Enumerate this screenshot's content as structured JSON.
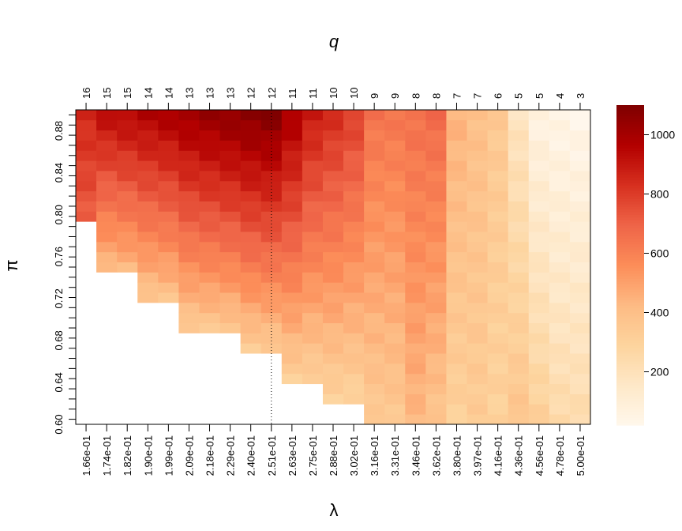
{
  "chart_data": {
    "type": "heatmap",
    "title": "q",
    "xlabel": "λ",
    "ylabel": "π",
    "x_tick_labels": [
      "1.66e-01",
      "1.74e-01",
      "1.82e-01",
      "1.90e-01",
      "1.99e-01",
      "2.09e-01",
      "2.18e-01",
      "2.29e-01",
      "2.40e-01",
      "2.51e-01",
      "2.63e-01",
      "2.75e-01",
      "2.88e-01",
      "3.02e-01",
      "3.16e-01",
      "3.31e-01",
      "3.46e-01",
      "3.62e-01",
      "3.80e-01",
      "3.97e-01",
      "4.16e-01",
      "4.36e-01",
      "4.56e-01",
      "4.78e-01",
      "5.00e-01"
    ],
    "top_tick_labels": [
      "16",
      "15",
      "15",
      "14",
      "14",
      "13",
      "13",
      "13",
      "12",
      "12",
      "11",
      "11",
      "10",
      "10",
      "9",
      "9",
      "8",
      "8",
      "7",
      "7",
      "6",
      "5",
      "5",
      "4",
      "3"
    ],
    "y_tick_labels": [
      "0.60",
      "0.64",
      "0.68",
      "0.72",
      "0.76",
      "0.80",
      "0.84",
      "0.88"
    ],
    "y_ticks": [
      0.6,
      0.64,
      0.68,
      0.72,
      0.76,
      0.8,
      0.84,
      0.88
    ],
    "y_range": [
      0.6,
      0.9
    ],
    "n_columns": 25,
    "n_rows": 31,
    "colorbar_ticks": [
      200,
      400,
      600,
      800,
      1000
    ],
    "color_range": [
      20,
      1100
    ],
    "palette": [
      "#FFF7EC",
      "#FEE8C8",
      "#FDD49E",
      "#FDBB84",
      "#FC8D59",
      "#EF6548",
      "#D7301F",
      "#B30000",
      "#7F0000"
    ],
    "reference_lines": {
      "vertical_x_label": "2.51e-01",
      "horizontal_y": 0.9
    },
    "column_profiles": [
      {
        "start_pi": 0.79,
        "values_bottom": 700,
        "values_top": 860
      },
      {
        "start_pi": 0.75,
        "values_bottom": 420,
        "values_top": 940
      },
      {
        "start_pi": 0.75,
        "values_bottom": 430,
        "values_top": 960
      },
      {
        "start_pi": 0.72,
        "values_bottom": 360,
        "values_top": 980
      },
      {
        "start_pi": 0.72,
        "values_bottom": 370,
        "values_top": 1000
      },
      {
        "start_pi": 0.69,
        "values_bottom": 330,
        "values_top": 1030
      },
      {
        "start_pi": 0.69,
        "values_bottom": 340,
        "values_top": 1050
      },
      {
        "start_pi": 0.69,
        "values_bottom": 350,
        "values_top": 1070
      },
      {
        "start_pi": 0.67,
        "values_bottom": 320,
        "values_top": 1090
      },
      {
        "start_pi": 0.67,
        "values_bottom": 330,
        "values_top": 1100
      },
      {
        "start_pi": 0.64,
        "values_bottom": 300,
        "values_top": 1000
      },
      {
        "start_pi": 0.64,
        "values_bottom": 300,
        "values_top": 900
      },
      {
        "start_pi": 0.62,
        "values_bottom": 280,
        "values_top": 850
      },
      {
        "start_pi": 0.62,
        "values_bottom": 280,
        "values_top": 800
      },
      {
        "start_pi": 0.6,
        "values_bottom": 330,
        "values_top": 650
      },
      {
        "start_pi": 0.6,
        "values_bottom": 340,
        "values_top": 640
      },
      {
        "start_pi": 0.6,
        "values_bottom": 420,
        "values_top": 660
      },
      {
        "start_pi": 0.6,
        "values_bottom": 360,
        "values_top": 680
      },
      {
        "start_pi": 0.6,
        "values_bottom": 300,
        "values_top": 450
      },
      {
        "start_pi": 0.6,
        "values_bottom": 330,
        "values_top": 400
      },
      {
        "start_pi": 0.6,
        "values_bottom": 300,
        "values_top": 350
      },
      {
        "start_pi": 0.6,
        "values_bottom": 380,
        "values_top": 180
      },
      {
        "start_pi": 0.6,
        "values_bottom": 320,
        "values_top": 60
      },
      {
        "start_pi": 0.6,
        "values_bottom": 260,
        "values_top": 40
      },
      {
        "start_pi": 0.6,
        "values_bottom": 250,
        "values_top": 30
      }
    ]
  }
}
